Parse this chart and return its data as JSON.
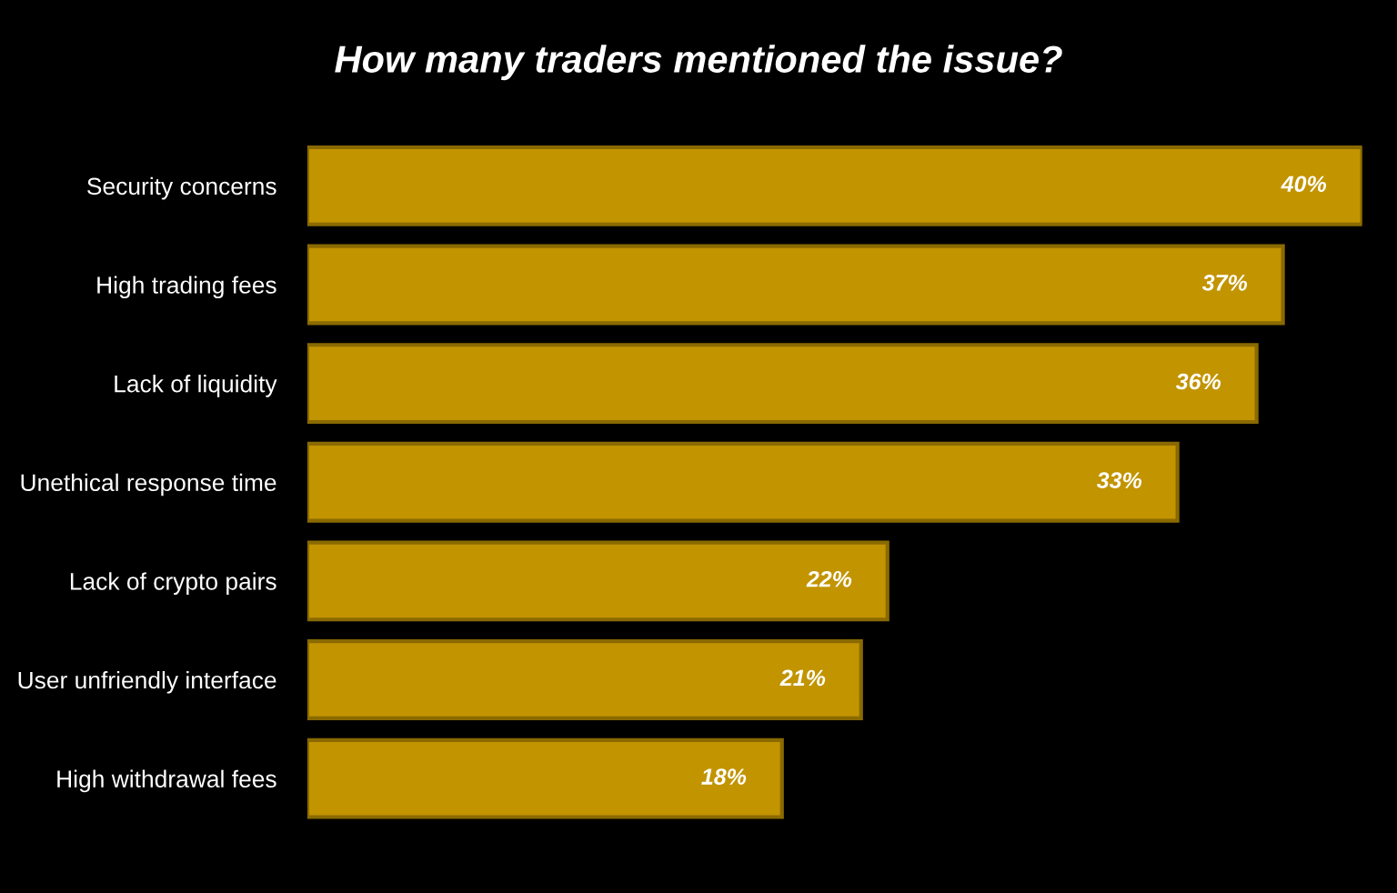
{
  "chart_data": {
    "type": "bar",
    "orientation": "horizontal",
    "title": "How many traders mentioned the issue?",
    "categories": [
      "Security concerns",
      "High trading fees",
      "Lack of liquidity",
      "Unethical response time",
      "Lack of crypto pairs",
      "User unfriendly interface",
      "High withdrawal fees"
    ],
    "values": [
      40,
      37,
      36,
      33,
      22,
      21,
      18
    ],
    "value_labels": [
      "40%",
      "37%",
      "36%",
      "33%",
      "22%",
      "21%",
      "18%"
    ],
    "color": "#c29400",
    "grid": false,
    "legend": false
  }
}
